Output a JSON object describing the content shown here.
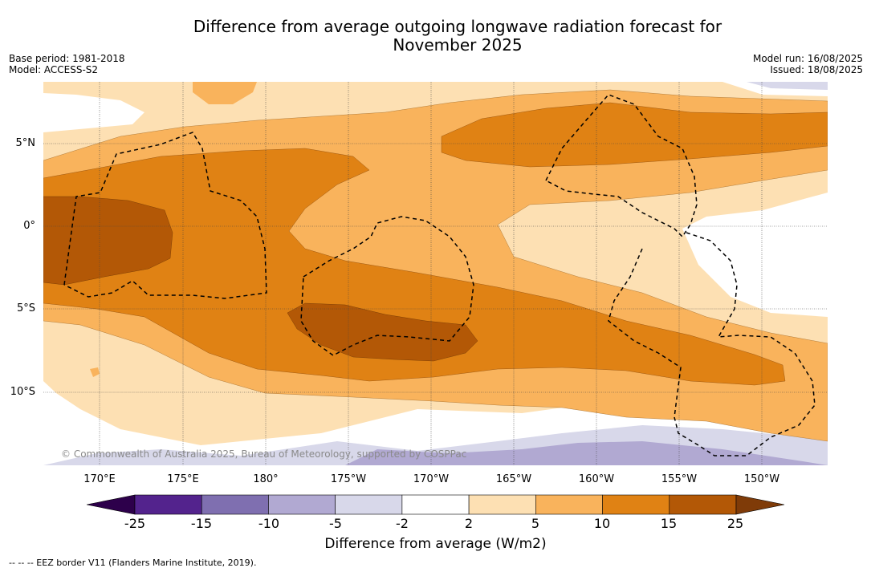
{
  "header": {
    "title_line1": "Difference from average outgoing longwave radiation forecast for",
    "title_line2": "November 2025",
    "base_period": "Base period: 1981-2018",
    "model": "Model: ACCESS-S2",
    "model_run": "Model run: 16/08/2025",
    "issued": "Issued: 18/08/2025"
  },
  "map": {
    "lat_labels": [
      "5°N",
      "0°",
      "5°S",
      "10°S"
    ],
    "lon_labels": [
      "170°E",
      "175°E",
      "180°",
      "175°W",
      "170°W",
      "165°W",
      "160°W",
      "155°W",
      "150°W"
    ],
    "copyright": "© Commonwealth of Australia 2025, Bureau of Meteorology, supported by COSPPac"
  },
  "colorbar": {
    "ticks": [
      "-25",
      "-15",
      "-10",
      "-5",
      "-2",
      "2",
      "5",
      "10",
      "15",
      "25"
    ],
    "colors": [
      "#53238d",
      "#7f6fb0",
      "#b1a9d2",
      "#d8d8ea",
      "#ffffff",
      "#fde0b3",
      "#f9b35c",
      "#e08214",
      "#b35806"
    ],
    "under_color": "#2d004b",
    "over_color": "#7f3b08",
    "label": "Difference from average (W/m2)"
  },
  "footnote": "-- -- -- EEZ border V11 (Flanders Marine Institute, 2019)."
}
